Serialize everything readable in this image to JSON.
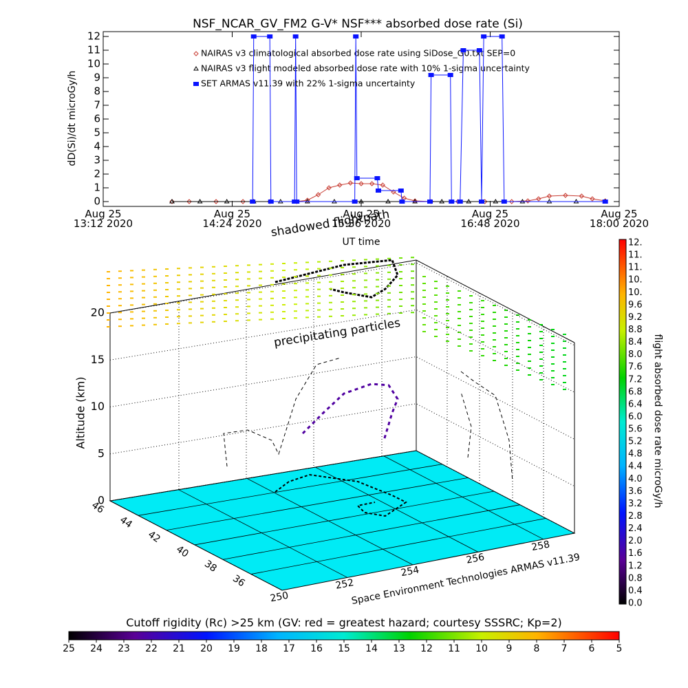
{
  "chart_data": [
    {
      "type": "line",
      "title": "NSF_NCAR_GV_FM2 G-V* NSF*** absorbed dose rate (Si)",
      "y_label": "dD(Si)/dt microGy/h",
      "x_label": "UT time",
      "xlim": [
        13.2,
        18.0
      ],
      "xticks": [
        {
          "value": 13.2,
          "label": "Aug 25\n13:12 2020"
        },
        {
          "value": 14.4,
          "label": "Aug 25\n14:24 2020"
        },
        {
          "value": 15.6,
          "label": "Aug 25\n15:36 2020"
        },
        {
          "value": 16.8,
          "label": "Aug 25\n16:48 2020"
        },
        {
          "value": 18.0,
          "label": "Aug 25\n18:00 2020"
        }
      ],
      "ylim": [
        -0.35,
        12.35
      ],
      "yticks": [
        0,
        1,
        2,
        3,
        4,
        5,
        6,
        7,
        8,
        9,
        10,
        11,
        12
      ],
      "series": [
        {
          "name": "NAIRAS v3 climatological absorbed dose rate using SiDose_G0.txt SEP=0",
          "color": "#c83c32",
          "marker": "diamond",
          "x": [
            13.84,
            14.0,
            14.25,
            14.5,
            14.75,
            15.0,
            15.1,
            15.2,
            15.3,
            15.4,
            15.5,
            15.6,
            15.7,
            15.8,
            15.9,
            16.0,
            16.1,
            16.25,
            16.5,
            16.75,
            17.0,
            17.15,
            17.25,
            17.35,
            17.5,
            17.65,
            17.75,
            17.87
          ],
          "values": [
            0,
            0,
            0,
            0,
            0,
            0,
            0.1,
            0.5,
            1.0,
            1.2,
            1.35,
            1.3,
            1.3,
            1.2,
            0.7,
            0.25,
            0.05,
            0,
            0,
            0,
            0,
            0.05,
            0.2,
            0.4,
            0.45,
            0.4,
            0.2,
            0.05
          ]
        },
        {
          "name": "NAIRAS v3 flight modeled absorbed dose rate with 10% 1-sigma uncertainty",
          "color": "#000000",
          "marker": "triangle",
          "x": [
            13.84,
            14.1,
            14.35,
            14.6,
            14.85,
            15.1,
            15.35,
            15.6,
            15.85,
            16.1,
            16.35,
            16.6,
            16.85,
            17.1,
            17.35,
            17.6,
            17.87
          ],
          "values": [
            0,
            0,
            0,
            0,
            0,
            0,
            0,
            0,
            0,
            0,
            0,
            0,
            0,
            0,
            0,
            0,
            0
          ]
        },
        {
          "name": "SET ARMAS v11.39 with 22% 1-sigma uncertainty",
          "color": "#0a14ff",
          "marker": "square",
          "x": [
            14.59,
            14.6,
            14.75,
            14.76,
            14.98,
            14.99,
            15.0,
            15.54,
            15.55,
            15.56,
            15.75,
            15.76,
            15.97,
            15.98,
            16.24,
            16.25,
            16.43,
            16.44,
            16.52,
            16.55,
            16.7,
            16.72,
            16.74,
            16.91,
            16.93,
            17.87
          ],
          "values": [
            0,
            12,
            12,
            0,
            0,
            12,
            0,
            0,
            12,
            1.7,
            1.7,
            0.8,
            0.8,
            0,
            0,
            9.2,
            9.2,
            0,
            0,
            11,
            11,
            0,
            12,
            12,
            0,
            0
          ]
        }
      ]
    },
    {
      "type": "surface3d",
      "annotations": [
        "shadowed flightpath",
        "precipitating particles"
      ],
      "z_label": "Altitude (km)",
      "zlim": [
        0,
        20
      ],
      "zticks": [
        0,
        5,
        10,
        15,
        20
      ],
      "latlim": [
        46,
        33.8
      ],
      "latticks": [
        46,
        44,
        42,
        40,
        38,
        36
      ],
      "lonlim": [
        250,
        258.95
      ],
      "lonticks": [
        250,
        252,
        254,
        256,
        258
      ],
      "credit": "Space Environment Technologies ARMAS v11.39"
    },
    {
      "type": "colorbar_vertical",
      "label": "flight absorbed dose rate microGy/h",
      "tick_labels": [
        "12.",
        "11.",
        "11.",
        "10.",
        "10.",
        "9.6",
        "9.2",
        "8.8",
        "8.4",
        "8.0",
        "7.6",
        "7.2",
        "6.8",
        "6.4",
        "6.0",
        "5.6",
        "5.2",
        "4.8",
        "4.4",
        "4.0",
        "3.6",
        "3.2",
        "2.8",
        "2.4",
        "2.0",
        "1.6",
        "1.2",
        "0.8",
        "0.4",
        "0.0"
      ]
    },
    {
      "type": "colorbar_horizontal",
      "label": "Cutoff rigidity (Rc) >25 km (GV: red = greatest hazard; courtesy SSSRC; Kp=2)",
      "lim": [
        25,
        5
      ],
      "ticks": [
        25,
        24,
        23,
        22,
        21,
        20,
        19,
        18,
        17,
        16,
        15,
        14,
        13,
        12,
        11,
        10,
        9,
        8,
        7,
        6,
        5
      ]
    }
  ]
}
